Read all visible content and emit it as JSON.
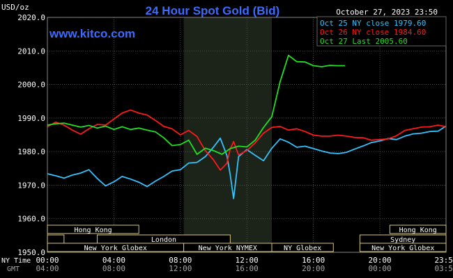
{
  "header": {
    "title": "24 Hour Spot Gold (Bid)",
    "unit_label": "USD/oz",
    "datetime": "October 27, 2023 23:50",
    "website": "www.kitco.com"
  },
  "colors": {
    "background": "#000000",
    "plot_bg": "#000000",
    "night_shade": "#1c2318",
    "grid": "#5a5a5a",
    "title": "#3d6bff",
    "website": "#3d6bff",
    "oct25": "#33c3ff",
    "oct26": "#ff1a1a",
    "oct27": "#22e022",
    "bar_border": "#d9c77a",
    "text": "#ffffff",
    "subtext": "#a8a8a8"
  },
  "legend": [
    {
      "label": "Oct 25 NY close 1979.60",
      "color_key": "oct25"
    },
    {
      "label": "Oct 26 NY close 1984.60",
      "color_key": "oct26"
    },
    {
      "label": "Oct 27 Last 2005.60",
      "color_key": "oct27"
    }
  ],
  "time_axis": {
    "ny_label": "NY Time",
    "gmt_label": "GMT",
    "ticks": [
      {
        "ny": "00:00",
        "gmt": "04:00",
        "h": 0
      },
      {
        "ny": "04:00",
        "gmt": "08:00",
        "h": 4
      },
      {
        "ny": "08:00",
        "gmt": "12:00",
        "h": 8
      },
      {
        "ny": "12:00",
        "gmt": "16:00",
        "h": 12
      },
      {
        "ny": "16:00",
        "gmt": "20:00",
        "h": 16
      },
      {
        "ny": "20:00",
        "gmt": "00:00",
        "h": 20
      },
      {
        "ny": "23:59",
        "gmt": "03:59",
        "h": 23.98
      }
    ]
  },
  "sessions": [
    {
      "label": "Hong Kong",
      "row": 0,
      "start": 0,
      "end": 5.5
    },
    {
      "label": "",
      "row": 1,
      "start": 0,
      "end": 1
    },
    {
      "label": "London",
      "row": 1,
      "start": 3,
      "end": 11
    },
    {
      "label": "New York Globex",
      "row": 2,
      "start": 0,
      "end": 8.2
    },
    {
      "label": "New York NYMEX",
      "row": 2,
      "start": 8.2,
      "end": 13.5
    },
    {
      "label": "NY Globex",
      "row": 2,
      "start": 13.5,
      "end": 17.2
    },
    {
      "label": "Hong Kong",
      "row": 0,
      "start": 20.6,
      "end": 23.98
    },
    {
      "label": "Sydney",
      "row": 1,
      "start": 18.8,
      "end": 23.98
    },
    {
      "label": "New York Globex",
      "row": 2,
      "start": 18.8,
      "end": 23.98
    }
  ],
  "chart_data": {
    "type": "line",
    "title": "24 Hour Spot Gold (Bid)",
    "ylabel": "USD/oz",
    "xlabel": "NY Time",
    "xlim": [
      0,
      23.98
    ],
    "ylim": [
      1950,
      2020
    ],
    "y_ticks": [
      1950,
      1960,
      1970,
      1980,
      1990,
      2000,
      2010,
      2020
    ],
    "y_tick_labels": [
      "1950.0",
      "1960.0",
      "1970.0",
      "1980.0",
      "1990.0",
      "2000.0",
      "2010.0",
      "2020.0"
    ],
    "grid": true,
    "legend_position": "top-right",
    "shaded_region": [
      8.2,
      13.5
    ],
    "series": [
      {
        "name": "Oct 25 NY close 1979.60",
        "color_key": "oct25",
        "points": [
          [
            0,
            1973.4
          ],
          [
            0.5,
            1972.8
          ],
          [
            1,
            1972.1
          ],
          [
            1.5,
            1973.0
          ],
          [
            2,
            1973.6
          ],
          [
            2.5,
            1974.6
          ],
          [
            3,
            1972.0
          ],
          [
            3.5,
            1969.8
          ],
          [
            4,
            1971.0
          ],
          [
            4.5,
            1972.6
          ],
          [
            5,
            1971.8
          ],
          [
            5.5,
            1970.9
          ],
          [
            6,
            1969.6
          ],
          [
            6.5,
            1971.2
          ],
          [
            7,
            1972.6
          ],
          [
            7.5,
            1974.2
          ],
          [
            8,
            1974.6
          ],
          [
            8.5,
            1976.6
          ],
          [
            9,
            1976.8
          ],
          [
            9.5,
            1978.5
          ],
          [
            10,
            1981.4
          ],
          [
            10.4,
            1984.0
          ],
          [
            10.8,
            1978.8
          ],
          [
            11,
            1973.0
          ],
          [
            11.2,
            1966.0
          ],
          [
            11.5,
            1978.5
          ],
          [
            12,
            1980.6
          ],
          [
            12.5,
            1978.9
          ],
          [
            13,
            1977.3
          ],
          [
            13.5,
            1981.0
          ],
          [
            14,
            1983.8
          ],
          [
            14.5,
            1982.8
          ],
          [
            15,
            1981.3
          ],
          [
            15.5,
            1981.6
          ],
          [
            16,
            1980.9
          ],
          [
            16.5,
            1980.2
          ],
          [
            17,
            1979.6
          ],
          [
            17.5,
            1979.4
          ],
          [
            18,
            1979.8
          ],
          [
            18.5,
            1980.8
          ],
          [
            19,
            1981.7
          ],
          [
            19.5,
            1982.7
          ],
          [
            20,
            1983.2
          ],
          [
            20.5,
            1983.9
          ],
          [
            21,
            1983.6
          ],
          [
            21.5,
            1984.6
          ],
          [
            22,
            1985.3
          ],
          [
            22.5,
            1985.5
          ],
          [
            23,
            1986.0
          ],
          [
            23.5,
            1986.1
          ],
          [
            23.98,
            1987.6
          ]
        ]
      },
      {
        "name": "Oct 26 NY close 1984.60",
        "color_key": "oct26",
        "points": [
          [
            0,
            1987.4
          ],
          [
            0.5,
            1988.8
          ],
          [
            1,
            1987.9
          ],
          [
            1.5,
            1986.4
          ],
          [
            2,
            1985.2
          ],
          [
            2.5,
            1986.8
          ],
          [
            3,
            1988.1
          ],
          [
            3.5,
            1987.9
          ],
          [
            4,
            1989.7
          ],
          [
            4.5,
            1991.5
          ],
          [
            5,
            1992.4
          ],
          [
            5.5,
            1991.5
          ],
          [
            6,
            1990.9
          ],
          [
            6.5,
            1989.3
          ],
          [
            7,
            1987.5
          ],
          [
            7.5,
            1986.8
          ],
          [
            8,
            1985.0
          ],
          [
            8.5,
            1986.3
          ],
          [
            9,
            1984.5
          ],
          [
            9.5,
            1980.3
          ],
          [
            10,
            1977.5
          ],
          [
            10.4,
            1974.5
          ],
          [
            10.8,
            1976.5
          ],
          [
            11,
            1980.8
          ],
          [
            11.2,
            1983.0
          ],
          [
            11.5,
            1979.0
          ],
          [
            12,
            1980.3
          ],
          [
            12.5,
            1982.6
          ],
          [
            13,
            1985.5
          ],
          [
            13.5,
            1987.2
          ],
          [
            14,
            1987.5
          ],
          [
            14.5,
            1986.4
          ],
          [
            15,
            1986.8
          ],
          [
            15.5,
            1986.0
          ],
          [
            16,
            1984.9
          ],
          [
            16.5,
            1984.6
          ],
          [
            17,
            1984.6
          ],
          [
            17.5,
            1984.9
          ],
          [
            18,
            1984.6
          ],
          [
            18.5,
            1984.2
          ],
          [
            19,
            1984.1
          ],
          [
            19.5,
            1983.4
          ],
          [
            20,
            1983.6
          ],
          [
            20.5,
            1983.8
          ],
          [
            21,
            1984.7
          ],
          [
            21.5,
            1986.3
          ],
          [
            22,
            1986.8
          ],
          [
            22.5,
            1987.3
          ],
          [
            23,
            1987.4
          ],
          [
            23.5,
            1987.9
          ],
          [
            23.98,
            1987.4
          ]
        ]
      },
      {
        "name": "Oct 27 Last 2005.60",
        "color_key": "oct27",
        "points": [
          [
            0,
            1987.9
          ],
          [
            0.5,
            1988.3
          ],
          [
            1,
            1988.5
          ],
          [
            1.5,
            1987.9
          ],
          [
            2,
            1987.3
          ],
          [
            2.5,
            1987.8
          ],
          [
            3,
            1987.0
          ],
          [
            3.5,
            1987.6
          ],
          [
            4,
            1986.6
          ],
          [
            4.5,
            1987.4
          ],
          [
            5,
            1986.6
          ],
          [
            5.5,
            1987.0
          ],
          [
            6,
            1986.4
          ],
          [
            6.5,
            1985.9
          ],
          [
            7,
            1984.1
          ],
          [
            7.5,
            1981.8
          ],
          [
            8,
            1982.1
          ],
          [
            8.5,
            1983.4
          ],
          [
            9,
            1979.2
          ],
          [
            9.5,
            1981.0
          ],
          [
            10,
            1980.3
          ],
          [
            10.5,
            1979.2
          ],
          [
            11,
            1980.9
          ],
          [
            11.5,
            1981.6
          ],
          [
            12,
            1981.4
          ],
          [
            12.5,
            1983.4
          ],
          [
            13,
            1987.2
          ],
          [
            13.5,
            1990.4
          ],
          [
            14,
            2000.8
          ],
          [
            14.5,
            2008.7
          ],
          [
            15,
            2006.8
          ],
          [
            15.5,
            2006.7
          ],
          [
            16,
            2005.6
          ],
          [
            16.5,
            2005.3
          ],
          [
            17,
            2005.7
          ],
          [
            17.4,
            2005.6
          ],
          [
            17.9,
            2005.6
          ]
        ]
      }
    ]
  }
}
